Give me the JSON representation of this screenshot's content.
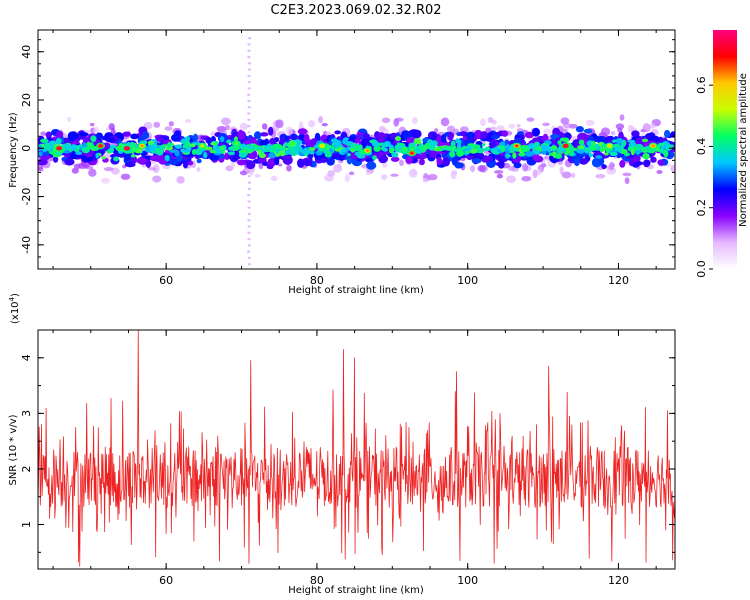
{
  "figure": {
    "title": "C2E3.2023.069.02.32.R02"
  },
  "chart_data": [
    {
      "type": "heatmap",
      "xlabel": "Height of straight line (km)",
      "ylabel": "Frequency (Hz)",
      "xlim": [
        43,
        127.5
      ],
      "ylim": [
        -50,
        49
      ],
      "x_ticks": [
        60,
        80,
        100,
        120
      ],
      "y_ticks": [
        -40,
        -20,
        0,
        20,
        40
      ],
      "grid": false,
      "signal_band_hz": [
        -8,
        8
      ],
      "strong_spots": [
        {
          "x": 45.8,
          "y": 0,
          "value": 0.72
        },
        {
          "x": 51.3,
          "y": 1,
          "value": 0.7
        },
        {
          "x": 54.8,
          "y": 0,
          "value": 0.75
        },
        {
          "x": 56.8,
          "y": 1,
          "value": 0.6
        },
        {
          "x": 64.8,
          "y": 1,
          "value": 0.5
        },
        {
          "x": 69.3,
          "y": 2,
          "value": 0.45
        },
        {
          "x": 80.7,
          "y": 1,
          "value": 0.55
        },
        {
          "x": 86.7,
          "y": -1,
          "value": 0.6
        },
        {
          "x": 92.6,
          "y": -2,
          "value": 0.68
        },
        {
          "x": 106.5,
          "y": 1,
          "value": 0.65
        },
        {
          "x": 113.0,
          "y": 1,
          "value": 0.72
        },
        {
          "x": 118.8,
          "y": 1,
          "value": 0.55
        },
        {
          "x": 124.6,
          "y": 1,
          "value": 0.6
        }
      ],
      "vertical_streak_x": 71.0,
      "colorbar": {
        "label": "Normalized spectral amplitude",
        "range": [
          0.0,
          0.78
        ],
        "ticks": [
          "0.0",
          "0.2",
          "0.4",
          "0.6"
        ],
        "colors": [
          "#ffffff",
          "#e5b8ff",
          "#8a00ff",
          "#0000ff",
          "#00c8ff",
          "#00ff64",
          "#c8ff00",
          "#ffc800",
          "#ff0000",
          "#ff0080"
        ]
      }
    },
    {
      "type": "line",
      "xlabel": "Height of straight line (km)",
      "ylabel": "SNR (10 * v/v)",
      "multiplier_label": "(x10",
      "multiplier_exponent": "4",
      "multiplier_close": ")",
      "xlim": [
        43,
        127.5
      ],
      "ylim": [
        0.2,
        4.5
      ],
      "x_ticks": [
        60,
        80,
        100,
        120
      ],
      "y_ticks": [
        1,
        2,
        3,
        4
      ],
      "grid": false,
      "color": "#ee2222",
      "baseline_mean": 1.85,
      "peaks": [
        {
          "x": 56.3,
          "y": 4.5
        },
        {
          "x": 71.2,
          "y": 3.95
        },
        {
          "x": 83.5,
          "y": 4.15
        },
        {
          "x": 85.0,
          "y": 4.0
        },
        {
          "x": 98.5,
          "y": 3.75
        },
        {
          "x": 110.7,
          "y": 3.85
        },
        {
          "x": 126.5,
          "y": 3.05
        }
      ],
      "troughs": [
        {
          "x": 48.5,
          "y": 0.25
        },
        {
          "x": 71.0,
          "y": 0.3
        },
        {
          "x": 99.0,
          "y": 0.35
        },
        {
          "x": 126.3,
          "y": 0.9
        }
      ]
    }
  ]
}
